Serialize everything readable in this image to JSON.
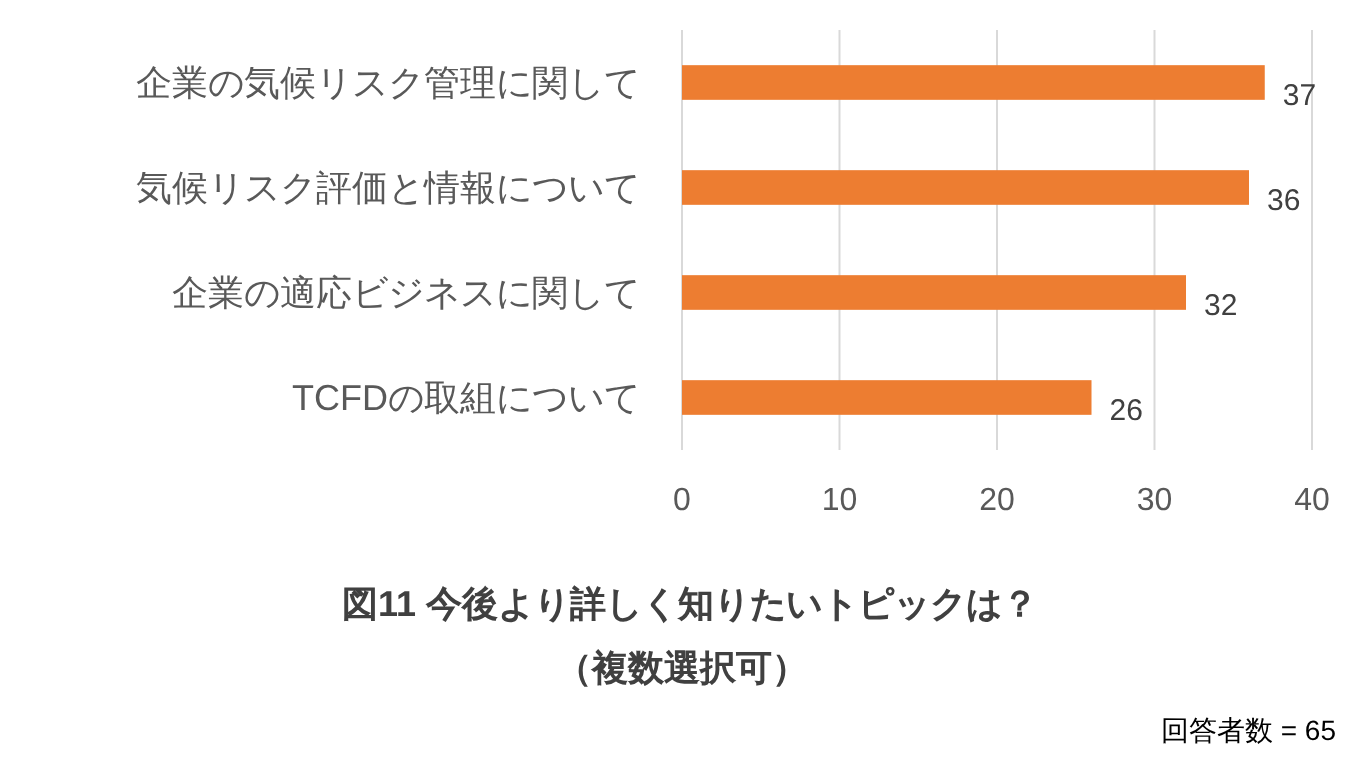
{
  "chart_data": {
    "type": "bar",
    "orientation": "horizontal",
    "title": "図11 今後より詳しく知りたいトピックは？",
    "subtitle": "（複数選択可）",
    "categories": [
      "企業の気候リスク管理に関して",
      "気候リスク評価と情報について",
      "企業の適応ビジネスに関して",
      "TCFDの取組について"
    ],
    "values": [
      37,
      36,
      32,
      26
    ],
    "color": "#ed7d31",
    "xlim": [
      0,
      40
    ],
    "xticks": [
      0,
      10,
      20,
      30,
      40
    ],
    "grid": "x",
    "data_labels": true,
    "annotations": [
      "回答者数 = 65"
    ]
  }
}
